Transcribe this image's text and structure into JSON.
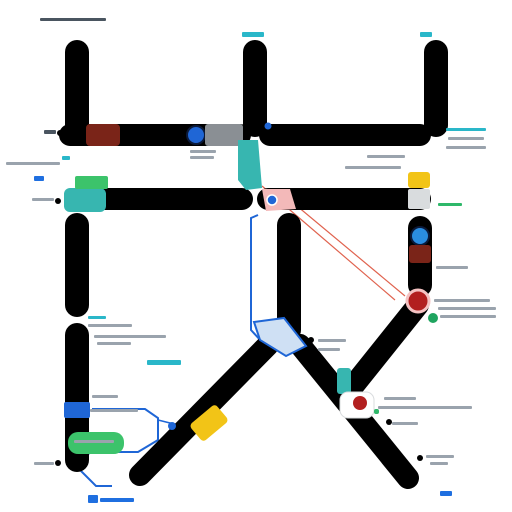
{
  "diagram": {
    "colors": {
      "track": "#000000",
      "background": "#ffffff",
      "teal": "#37b6b0",
      "green": "#3cc36b",
      "blue": "#1f66d6",
      "yellow": "#f2c417",
      "red": "#b21f1f",
      "dark_red": "#7a2418",
      "connector_red": "#e0634f",
      "connector_blue": "#1f66d6",
      "gray_tab": "#8a8f94"
    },
    "icons": [
      "node-circle-icon",
      "map-pin-icon",
      "gear-blob-icon"
    ],
    "note": ""
  }
}
